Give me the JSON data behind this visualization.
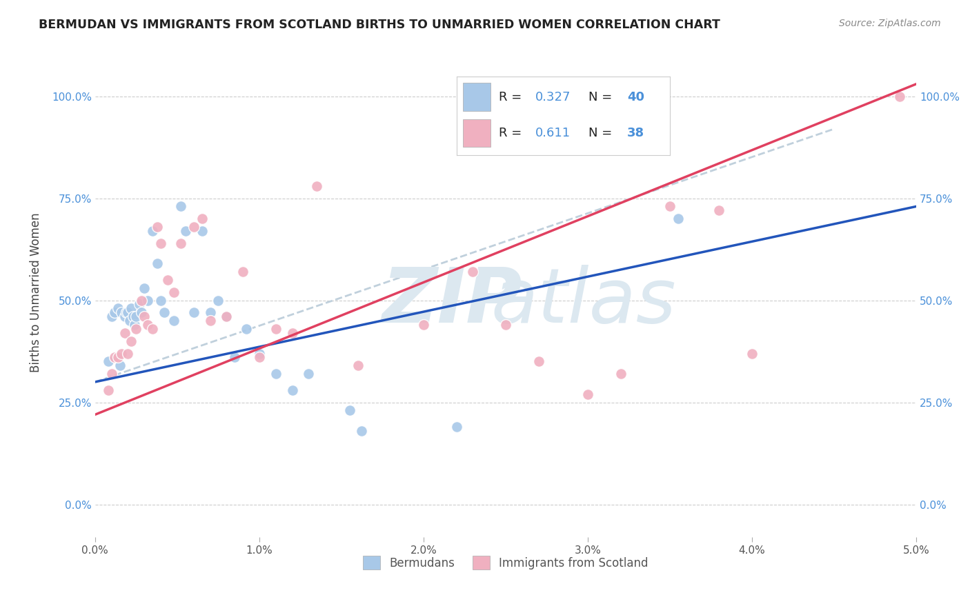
{
  "title": "BERMUDAN VS IMMIGRANTS FROM SCOTLAND BIRTHS TO UNMARRIED WOMEN CORRELATION CHART",
  "source": "Source: ZipAtlas.com",
  "ylabel": "Births to Unmarried Women",
  "xlim": [
    0.0,
    5.0
  ],
  "ylim": [
    -8.0,
    112.0
  ],
  "xticks": [
    0.0,
    1.0,
    2.0,
    3.0,
    4.0,
    5.0
  ],
  "xtick_labels": [
    "0.0%",
    "1.0%",
    "2.0%",
    "3.0%",
    "4.0%",
    "5.0%"
  ],
  "ytick_positions": [
    0,
    25,
    50,
    75,
    100
  ],
  "ytick_labels": [
    "0.0%",
    "25.0%",
    "50.0%",
    "75.0%",
    "100.0%"
  ],
  "color_blue": "#a8c8e8",
  "color_pink": "#f0b0c0",
  "color_line_blue": "#2255bb",
  "color_line_pink": "#e04060",
  "color_dashed": "#c0d0dc",
  "watermark_zip": "ZIP",
  "watermark_atlas": "atlas",
  "watermark_color": "#dce8f0",
  "blue_x": [
    0.08,
    0.1,
    0.12,
    0.14,
    0.15,
    0.16,
    0.18,
    0.19,
    0.2,
    0.21,
    0.22,
    0.23,
    0.24,
    0.25,
    0.27,
    0.28,
    0.3,
    0.32,
    0.35,
    0.38,
    0.4,
    0.42,
    0.48,
    0.52,
    0.55,
    0.6,
    0.65,
    0.7,
    0.75,
    0.8,
    0.85,
    0.92,
    1.0,
    1.1,
    1.2,
    1.3,
    1.55,
    1.62,
    2.2,
    3.55
  ],
  "blue_y": [
    35,
    46,
    47,
    48,
    34,
    47,
    46,
    47,
    47,
    45,
    48,
    46,
    44,
    46,
    49,
    47,
    53,
    50,
    67,
    59,
    50,
    47,
    45,
    73,
    67,
    47,
    67,
    47,
    50,
    46,
    36,
    43,
    37,
    32,
    28,
    32,
    23,
    18,
    19,
    70
  ],
  "pink_x": [
    0.08,
    0.1,
    0.12,
    0.14,
    0.16,
    0.18,
    0.2,
    0.22,
    0.25,
    0.28,
    0.3,
    0.32,
    0.35,
    0.38,
    0.4,
    0.44,
    0.48,
    0.52,
    0.6,
    0.65,
    0.7,
    0.8,
    0.9,
    1.0,
    1.1,
    1.2,
    1.35,
    1.6,
    2.0,
    2.3,
    2.5,
    2.7,
    3.0,
    3.2,
    3.5,
    3.8,
    4.0,
    4.9
  ],
  "pink_y": [
    28,
    32,
    36,
    36,
    37,
    42,
    37,
    40,
    43,
    50,
    46,
    44,
    43,
    68,
    64,
    55,
    52,
    64,
    68,
    70,
    45,
    46,
    57,
    36,
    43,
    42,
    78,
    34,
    44,
    57,
    44,
    35,
    27,
    32,
    73,
    72,
    37,
    100
  ],
  "blue_line_x0": 0.0,
  "blue_line_y0": 30.0,
  "blue_line_x1": 5.0,
  "blue_line_y1": 73.0,
  "pink_line_x0": 0.0,
  "pink_line_y0": 22.0,
  "pink_line_x1": 5.0,
  "pink_line_y1": 103.0,
  "dash_line_x0": 0.0,
  "dash_line_y0": 30.0,
  "dash_line_x1": 4.5,
  "dash_line_y1": 92.0
}
